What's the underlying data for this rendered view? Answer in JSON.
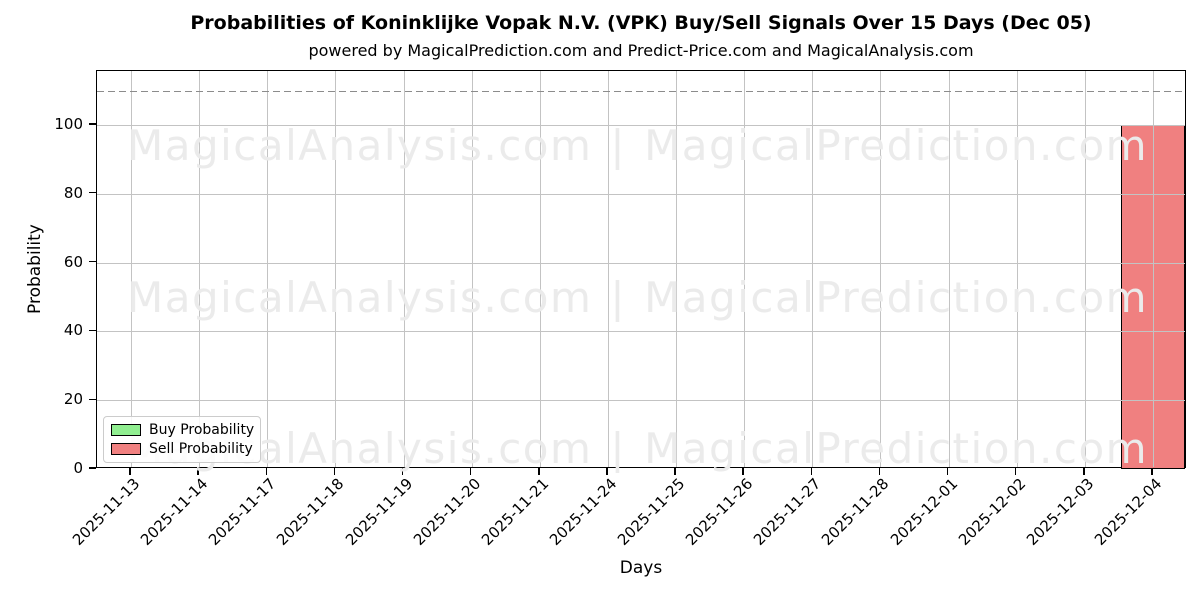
{
  "chart_data": {
    "type": "bar",
    "title": "Probabilities of Koninklijke Vopak N.V. (VPK) Buy/Sell Signals Over 15 Days (Dec 05)",
    "subtitle": "powered by MagicalPrediction.com and Predict-Price.com and MagicalAnalysis.com",
    "xlabel": "Days",
    "ylabel": "Probability",
    "categories": [
      "2025-11-13",
      "2025-11-14",
      "2025-11-17",
      "2025-11-18",
      "2025-11-19",
      "2025-11-20",
      "2025-11-21",
      "2025-11-24",
      "2025-11-25",
      "2025-11-26",
      "2025-11-27",
      "2025-11-28",
      "2025-12-01",
      "2025-12-02",
      "2025-12-03",
      "2025-12-04"
    ],
    "series": [
      {
        "name": "Buy Probability",
        "color": "#90ee90",
        "values": [
          0,
          0,
          0,
          0,
          0,
          0,
          0,
          0,
          0,
          0,
          0,
          0,
          0,
          0,
          0,
          0
        ]
      },
      {
        "name": "Sell Probability",
        "color": "#f08080",
        "values": [
          0,
          0,
          0,
          0,
          0,
          0,
          0,
          0,
          0,
          0,
          0,
          0,
          0,
          0,
          0,
          100
        ]
      }
    ],
    "yticks": [
      0,
      20,
      40,
      60,
      80,
      100
    ],
    "ylim": [
      0,
      115.7
    ],
    "dashed_line_y": 110,
    "grid": true,
    "legend_position": "lower left",
    "bar_edge_color": "#000000"
  },
  "watermark": {
    "left": "MagicalAnalysis.com",
    "separator": "|",
    "right": "MagicalPrediction.com",
    "rows": 3,
    "color": "#ebebeb"
  }
}
